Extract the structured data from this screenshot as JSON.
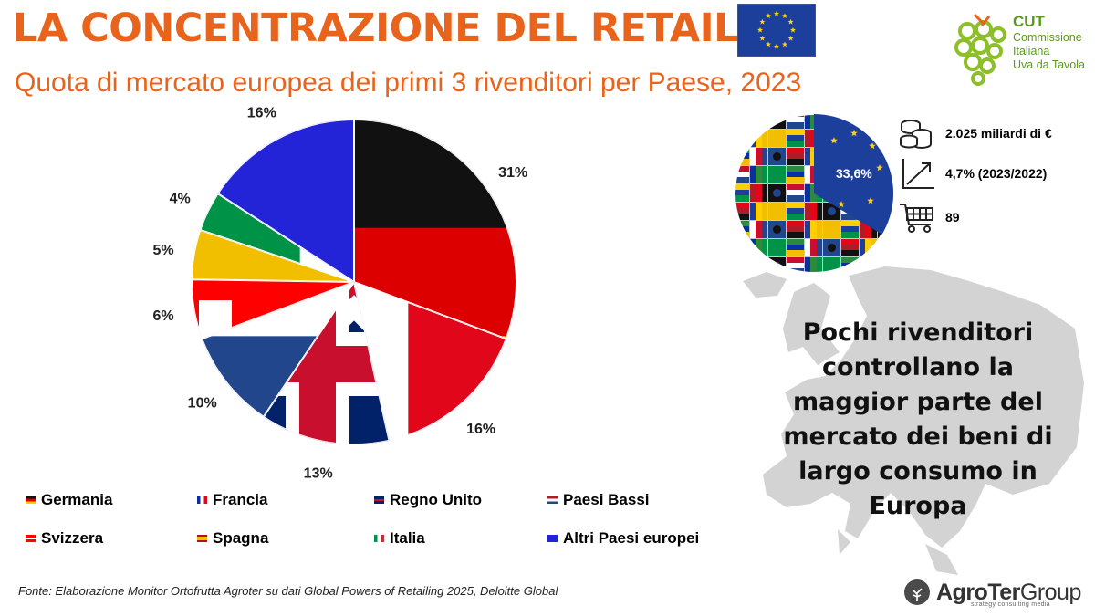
{
  "header": {
    "title": "LA CONCENTRAZIONE DEL RETAIL",
    "subtitle": "Quota di mercato europea dei primi 3 rivenditori per Paese, 2023"
  },
  "colors": {
    "title": "#e8631c",
    "cut_green": "#8dbf2a",
    "cut_text": "#5a9a1a"
  },
  "logo_cut": {
    "abbr": "CUT",
    "line1": "Commissione",
    "line2": "Italiana",
    "line3": "Uva da Tavola"
  },
  "chart_data": {
    "type": "pie",
    "categories": [
      "Germania",
      "Francia",
      "Regno Unito",
      "Paesi Bassi",
      "Svizzera",
      "Spagna",
      "Italia",
      "Altri Paesi europei"
    ],
    "values": [
      31,
      16,
      13,
      10,
      6,
      5,
      4,
      16
    ],
    "data_labels": [
      "31%",
      "16%",
      "13%",
      "10%",
      "6%",
      "5%",
      "4%",
      "16%"
    ],
    "title": "Quota di mercato europea dei primi 3 rivenditori per Paese, 2023",
    "legend_position": "bottom",
    "slice_fills": [
      "flag-de",
      "flag-fr",
      "flag-gb",
      "flag-nl",
      "flag-ch",
      "flag-es",
      "flag-it",
      "blue"
    ]
  },
  "stats": {
    "share": "33,6%",
    "items": [
      {
        "icon": "coins-icon",
        "text": "2.025 miliardi di €"
      },
      {
        "icon": "growth-chart-icon",
        "text": "4,7% (2023/2022)"
      },
      {
        "icon": "shopping-cart-icon",
        "text": "89"
      }
    ]
  },
  "claim": "Pochi rivenditori controllano la maggior parte del mercato dei beni di largo consumo in Europa",
  "footnote": "Fonte: Elaborazione Monitor Ortofrutta Agroter su dati Global Powers of Retailing 2025, Deloitte Global",
  "logo_agroter": {
    "name_a": "AgroTer",
    "name_b": "Group",
    "tagline": "strategy consulting media"
  }
}
